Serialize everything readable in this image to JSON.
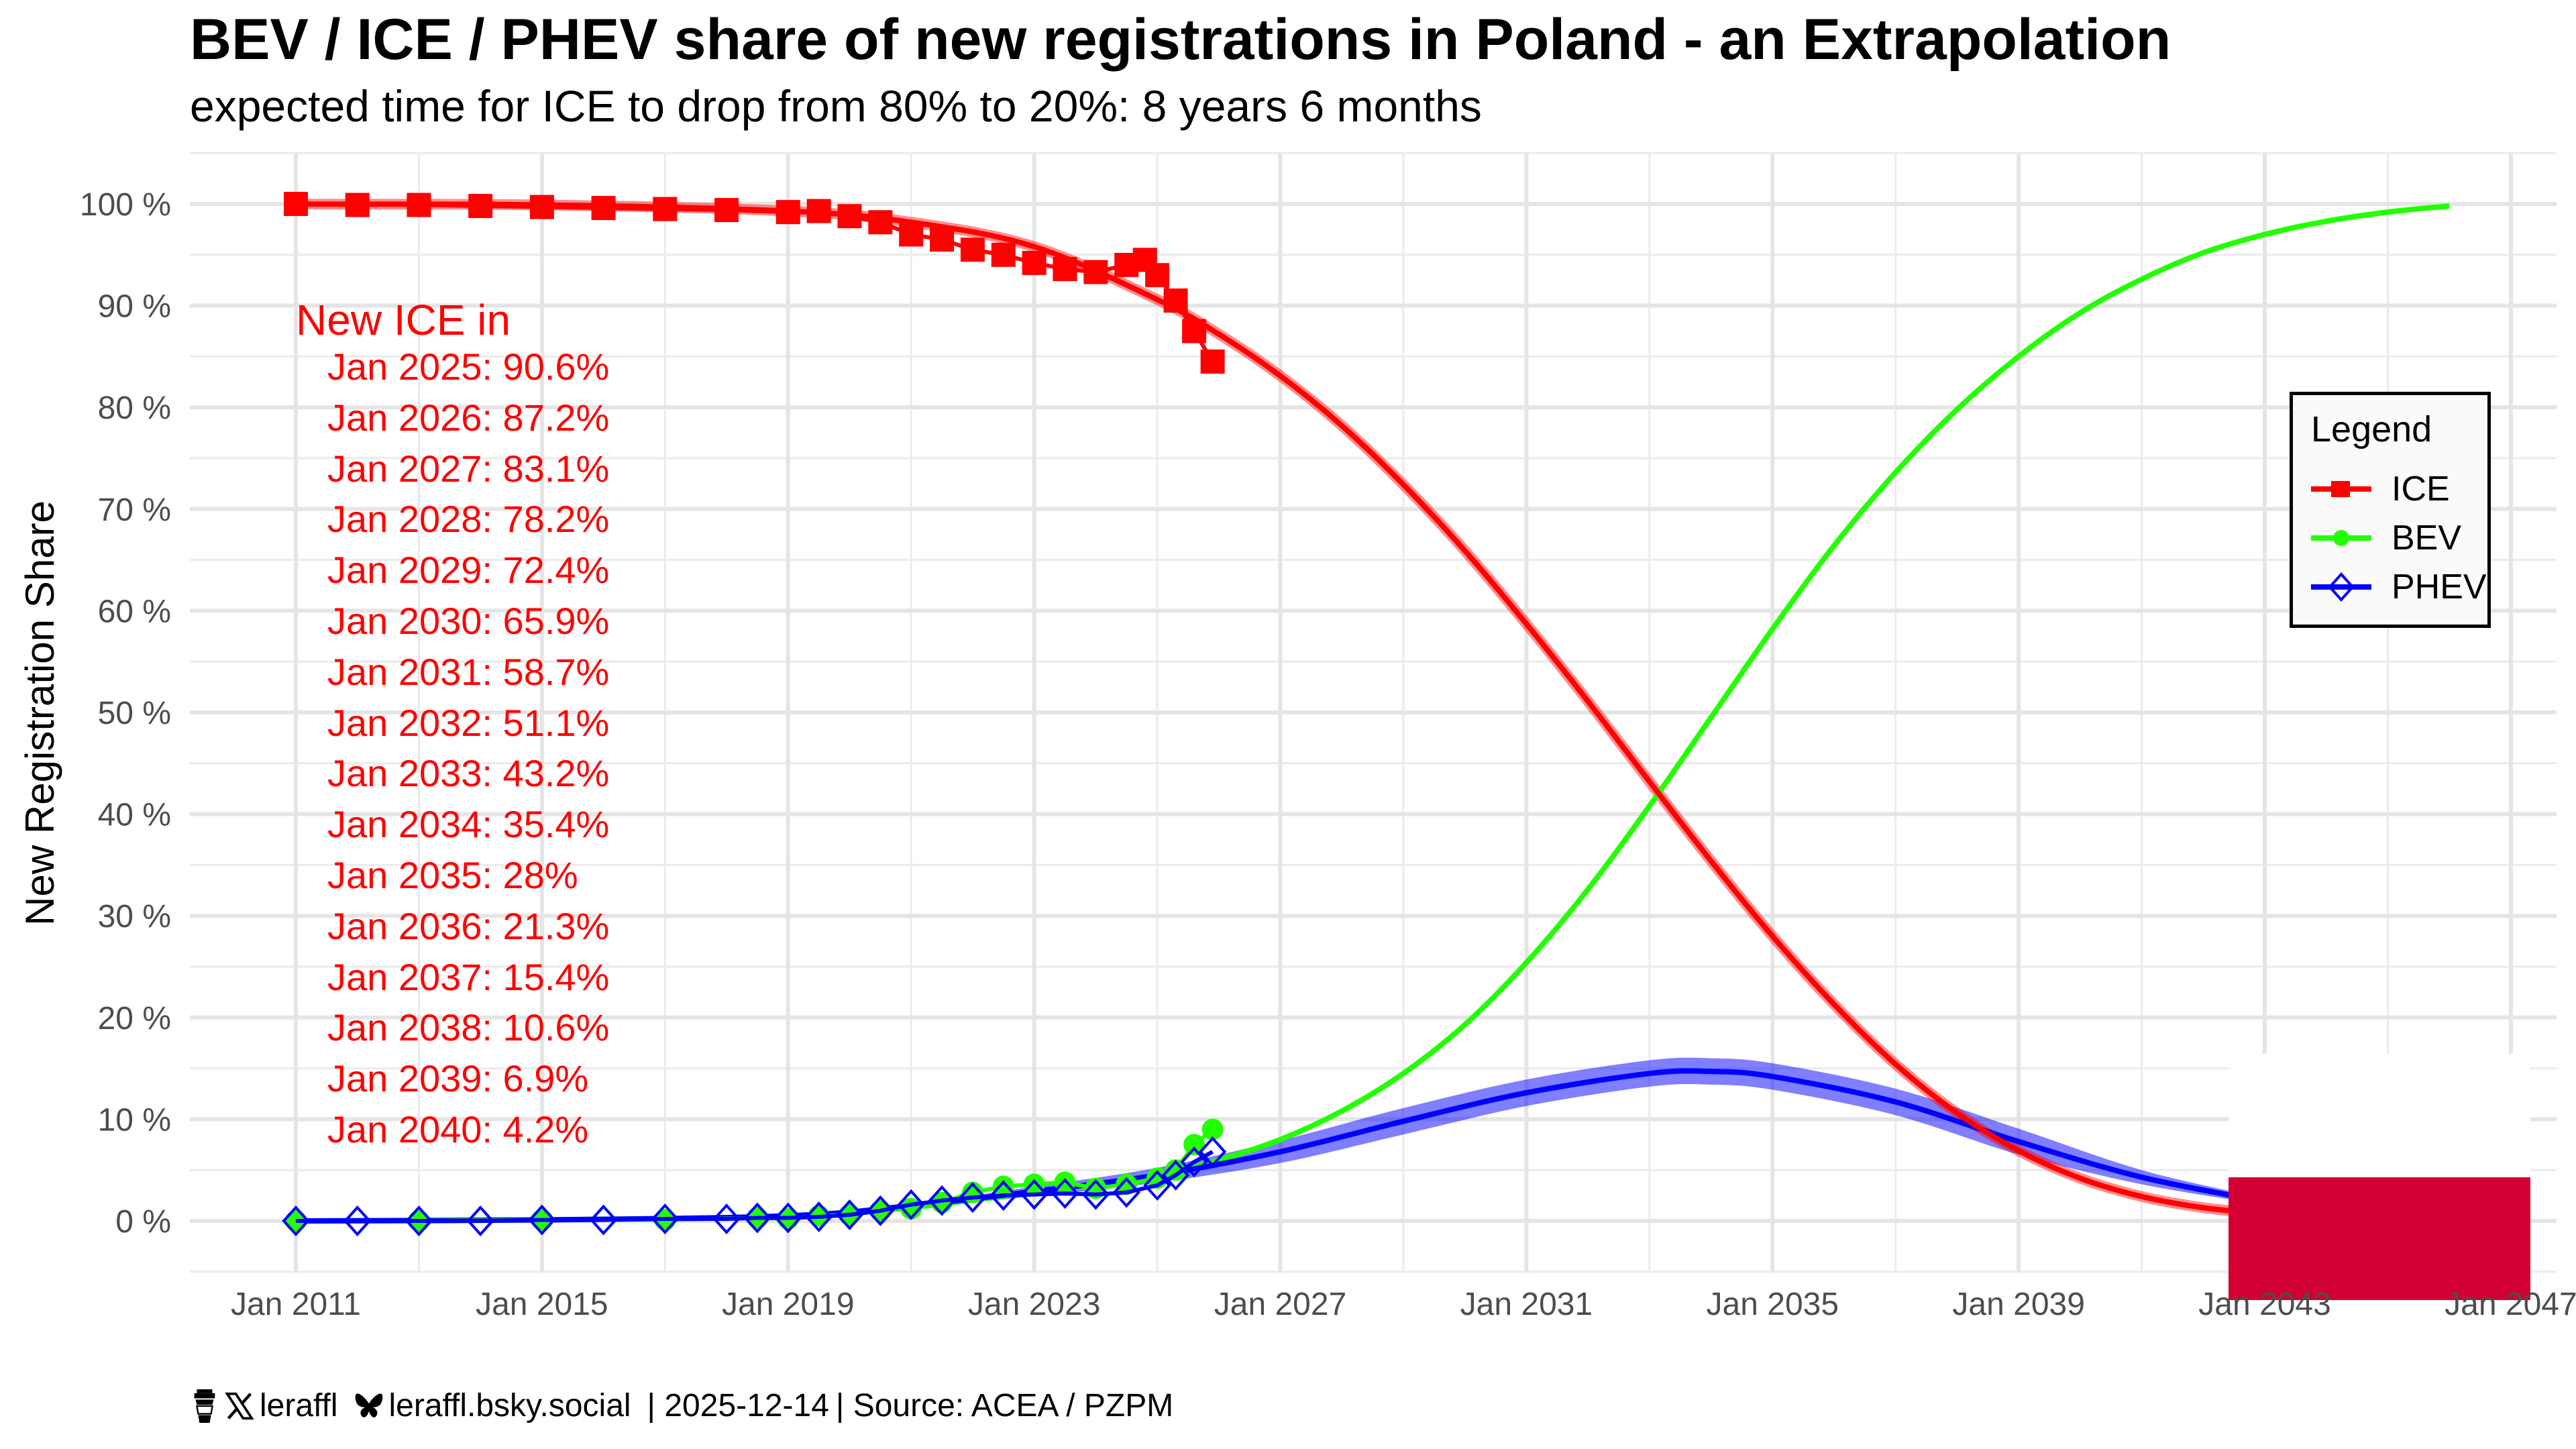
{
  "chart_data": {
    "type": "line",
    "title": "BEV / ICE / PHEV share of new registrations in Poland - an Extrapolation",
    "subtitle": "expected time for ICE to drop from 80% to 20%: 8 years 6 months",
    "xlabel": "",
    "ylabel": "New Registration Share",
    "xlim": [
      2010.3,
      2047.0
    ],
    "ylim": [
      -5,
      105
    ],
    "grid": true,
    "x_ticks": [
      "Jan 2011",
      "Jan 2015",
      "Jan 2019",
      "Jan 2023",
      "Jan 2027",
      "Jan 2031",
      "Jan 2035",
      "Jan 2039",
      "Jan 2043",
      "Jan 2047"
    ],
    "x_tick_years": [
      2011,
      2015,
      2019,
      2023,
      2027,
      2031,
      2035,
      2039,
      2043,
      2047
    ],
    "y_ticks": [
      "0 %",
      "10 %",
      "20 %",
      "30 %",
      "40 %",
      "50 %",
      "60 %",
      "70 %",
      "80 %",
      "90 %",
      "100 %"
    ],
    "y_tick_values": [
      0,
      10,
      20,
      30,
      40,
      50,
      60,
      70,
      80,
      90,
      100
    ],
    "legend": {
      "title": "Legend",
      "position": "right",
      "entries": [
        {
          "label": "ICE",
          "color": "#ff0000",
          "marker": "square"
        },
        {
          "label": "BEV",
          "color": "#22ff00",
          "marker": "circle"
        },
        {
          "label": "PHEV",
          "color": "#0000ff",
          "marker": "diamond-open"
        }
      ]
    },
    "series": [
      {
        "name": "ICE",
        "color": "#ff0000",
        "observed": {
          "x": [
            2011.0,
            2012.0,
            2013.0,
            2014.0,
            2015.0,
            2016.0,
            2017.0,
            2018.0,
            2019.0,
            2019.5,
            2020.0,
            2020.5,
            2021.0,
            2021.5,
            2022.0,
            2022.5,
            2023.0,
            2023.5,
            2024.0,
            2024.5,
            2024.8,
            2025.0,
            2025.3,
            2025.6,
            2025.9
          ],
          "y": [
            100.0,
            99.9,
            99.9,
            99.8,
            99.7,
            99.6,
            99.5,
            99.4,
            99.2,
            99.3,
            98.8,
            98.2,
            97.0,
            96.5,
            95.5,
            95.0,
            94.2,
            93.6,
            93.3,
            94.0,
            94.5,
            93.0,
            90.5,
            87.5,
            84.5
          ]
        },
        "fit": {
          "x": [
            2011,
            2015,
            2019,
            2021,
            2023,
            2025,
            2026,
            2027,
            2028,
            2029,
            2030,
            2031,
            2032,
            2033,
            2034,
            2035,
            2036,
            2037,
            2038,
            2039,
            2040,
            2041,
            2042,
            2043
          ],
          "y": [
            99.98,
            99.9,
            99.3,
            98.2,
            95.8,
            90.6,
            87.2,
            83.1,
            78.2,
            72.4,
            65.9,
            58.7,
            51.1,
            43.2,
            35.4,
            28.0,
            21.3,
            15.4,
            10.6,
            6.9,
            4.2,
            2.4,
            1.3,
            0.7
          ]
        }
      },
      {
        "name": "BEV",
        "color": "#22ff00",
        "observed": {
          "x": [
            2011.0,
            2013.0,
            2015.0,
            2017.0,
            2018.5,
            2019.0,
            2019.5,
            2020.0,
            2020.5,
            2021.0,
            2021.5,
            2022.0,
            2022.5,
            2023.0,
            2023.5,
            2024.0,
            2024.5,
            2025.0,
            2025.3,
            2025.6,
            2025.9
          ],
          "y": [
            0.0,
            0.0,
            0.1,
            0.1,
            0.3,
            0.2,
            0.5,
            0.6,
            1.0,
            1.2,
            1.8,
            2.8,
            3.4,
            3.6,
            3.8,
            3.2,
            3.6,
            4.2,
            5.0,
            7.5,
            9.0
          ]
        },
        "fit": {
          "x": [
            2011,
            2019,
            2023,
            2025,
            2026,
            2027,
            2028,
            2029,
            2030,
            2031,
            2032,
            2033,
            2034,
            2035,
            2036,
            2037,
            2038,
            2039,
            2040,
            2041,
            2042,
            2043,
            2044,
            2045,
            2046
          ],
          "y": [
            0.0,
            0.5,
            2.8,
            4.5,
            6.0,
            8.0,
            10.8,
            14.5,
            19.3,
            25.4,
            32.6,
            40.8,
            49.5,
            58.2,
            66.4,
            73.6,
            79.8,
            85.0,
            89.3,
            92.6,
            95.2,
            97.0,
            98.3,
            99.2,
            99.8
          ]
        }
      },
      {
        "name": "PHEV",
        "color": "#0000ff",
        "observed": {
          "x": [
            2011.0,
            2012.0,
            2013.0,
            2014.0,
            2015.0,
            2016.0,
            2017.0,
            2018.0,
            2018.5,
            2019.0,
            2019.5,
            2020.0,
            2020.5,
            2021.0,
            2021.5,
            2022.0,
            2022.5,
            2023.0,
            2023.5,
            2024.0,
            2024.5,
            2025.0,
            2025.3,
            2025.6,
            2025.9
          ],
          "y": [
            0.0,
            0.0,
            0.0,
            0.0,
            0.1,
            0.1,
            0.2,
            0.2,
            0.3,
            0.3,
            0.4,
            0.6,
            1.0,
            1.6,
            2.0,
            2.3,
            2.5,
            2.6,
            2.7,
            2.6,
            2.8,
            3.5,
            4.5,
            5.8,
            6.8
          ]
        },
        "fit": {
          "x": [
            2011,
            2015,
            2019,
            2021,
            2023,
            2025,
            2027,
            2029,
            2031,
            2033,
            2034,
            2035,
            2037,
            2039,
            2041,
            2043
          ],
          "y": [
            0.0,
            0.1,
            0.5,
            1.5,
            2.9,
            4.5,
            6.8,
            9.8,
            12.6,
            14.5,
            14.7,
            14.2,
            11.7,
            7.8,
            4.3,
            1.9
          ]
        },
        "band_halfwidth": 1.3
      }
    ],
    "annotation": {
      "heading": "New ICE in",
      "rows": [
        "Jan 2025: 90.6%",
        "Jan 2026: 87.2%",
        "Jan 2027: 83.1%",
        "Jan 2028: 78.2%",
        "Jan 2029: 72.4%",
        "Jan 2030: 65.9%",
        "Jan 2031: 58.7%",
        "Jan 2032: 51.1%",
        "Jan 2033: 43.2%",
        "Jan 2034: 35.4%",
        "Jan 2035: 28%",
        "Jan 2036: 21.3%",
        "Jan 2037: 15.4%",
        "Jan 2038: 10.6%",
        "Jan 2039: 6.9%",
        "Jan 2040: 4.2%"
      ],
      "color": "#ff0000"
    },
    "flag": {
      "country": "Poland",
      "colors": [
        "#ffffff",
        "#d20032"
      ]
    }
  },
  "footer": {
    "icons": [
      "coffee-cup-icon",
      "x-logo-icon",
      "bluesky-butterfly-icon"
    ],
    "x_handle": "leraffl",
    "bsky_handle": "leraffl.bsky.social",
    "date": "| 2025-12-14",
    "source": "| Source: ACEA / PZPM"
  }
}
